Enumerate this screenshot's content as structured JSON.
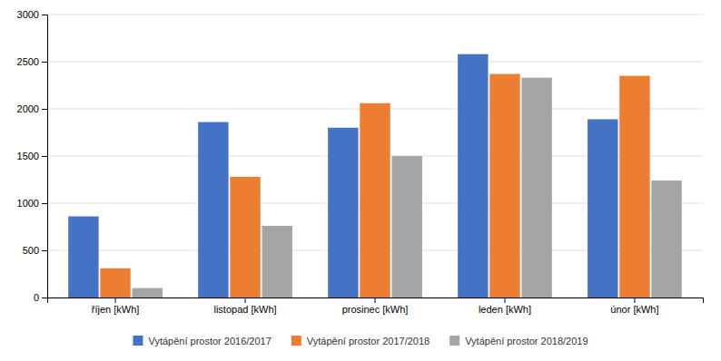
{
  "chart_data": {
    "type": "bar",
    "categories": [
      "říjen [kWh]",
      "listopad [kWh]",
      "prosinec [kWh]",
      "leden [kWh]",
      "únor [kWh]"
    ],
    "series": [
      {
        "name": "Vytápění prostor 2016/2017",
        "color": "#4472C4",
        "values": [
          860,
          1860,
          1800,
          2580,
          1890
        ]
      },
      {
        "name": "Vytápění prostor 2017/2018",
        "color": "#ED7D31",
        "values": [
          310,
          1280,
          2060,
          2370,
          2350
        ]
      },
      {
        "name": "Vytápění prostor 2018/2019",
        "color": "#A5A5A5",
        "values": [
          100,
          760,
          1500,
          2330,
          1240
        ]
      }
    ],
    "ylim": [
      0,
      3000
    ],
    "yticks": [
      0,
      500,
      1000,
      1500,
      2000,
      2500,
      3000
    ],
    "grid": true,
    "legend": "bottom"
  }
}
